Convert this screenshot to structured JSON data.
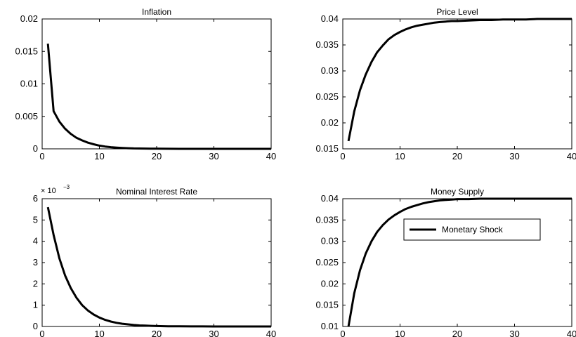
{
  "chart_data": [
    {
      "type": "line",
      "title": "Inflation",
      "xlim": [
        0,
        40
      ],
      "ylim": [
        0,
        0.02
      ],
      "xticks": [
        "0",
        "10",
        "20",
        "30",
        "40"
      ],
      "yticks": [
        "0",
        "0.005",
        "0.01",
        "0.015",
        "0.02"
      ],
      "series": [
        {
          "x": [
            1,
            2,
            3,
            4,
            5,
            6,
            7,
            8,
            9,
            10,
            11,
            12,
            13,
            14,
            15,
            16,
            17,
            18,
            19,
            20,
            22,
            24,
            26,
            28,
            30,
            32,
            34,
            36,
            38,
            40
          ],
          "y": [
            0.0162,
            0.0058,
            0.0042,
            0.0031,
            0.0023,
            0.0017,
            0.0013,
            0.00095,
            0.0007,
            0.0005,
            0.00036,
            0.00026,
            0.00019,
            0.00014,
            0.0001,
            7e-05,
            5e-05,
            4e-05,
            3e-05,
            2e-05,
            1e-05,
            5e-06,
            3e-06,
            2e-06,
            1e-06,
            0,
            0,
            0,
            0,
            0
          ]
        }
      ]
    },
    {
      "type": "line",
      "title": "Price Level",
      "xlim": [
        0,
        40
      ],
      "ylim": [
        0.015,
        0.04
      ],
      "xticks": [
        "0",
        "10",
        "20",
        "30",
        "40"
      ],
      "yticks": [
        "0.015",
        "0.02",
        "0.025",
        "0.03",
        "0.035",
        "0.04"
      ],
      "series": [
        {
          "x": [
            1,
            2,
            3,
            4,
            5,
            6,
            7,
            8,
            9,
            10,
            11,
            12,
            13,
            14,
            15,
            16,
            17,
            18,
            19,
            20,
            22,
            24,
            26,
            28,
            30,
            32,
            34,
            36,
            38,
            40
          ],
          "y": [
            0.0165,
            0.0222,
            0.0263,
            0.0293,
            0.0317,
            0.0336,
            0.0349,
            0.0361,
            0.0369,
            0.0375,
            0.038,
            0.0384,
            0.0387,
            0.0389,
            0.0391,
            0.0393,
            0.0394,
            0.0395,
            0.0396,
            0.0396,
            0.0397,
            0.0398,
            0.0398,
            0.0399,
            0.0399,
            0.0399,
            0.04,
            0.04,
            0.04,
            0.04
          ]
        }
      ]
    },
    {
      "type": "line",
      "title": "Nominal Interest Rate",
      "multiplier": "× 10",
      "exponent": "−3",
      "xlim": [
        0,
        40
      ],
      "ylim": [
        0,
        6
      ],
      "xticks": [
        "0",
        "10",
        "20",
        "30",
        "40"
      ],
      "yticks": [
        "0",
        "1",
        "2",
        "3",
        "4",
        "5",
        "6"
      ],
      "series": [
        {
          "x": [
            1,
            2,
            3,
            4,
            5,
            6,
            7,
            8,
            9,
            10,
            11,
            12,
            13,
            14,
            15,
            16,
            17,
            18,
            19,
            20,
            22,
            24,
            26,
            28,
            30,
            32,
            34,
            36,
            38,
            40
          ],
          "y": [
            5.6,
            4.3,
            3.2,
            2.4,
            1.8,
            1.35,
            1.0,
            0.75,
            0.56,
            0.42,
            0.31,
            0.23,
            0.17,
            0.13,
            0.1,
            0.07,
            0.05,
            0.04,
            0.03,
            0.02,
            0.01,
            0.005,
            0.003,
            0.002,
            0.001,
            0,
            0,
            0,
            0,
            0
          ]
        }
      ]
    },
    {
      "type": "line",
      "title": "Money Supply",
      "xlim": [
        0,
        40
      ],
      "ylim": [
        0.01,
        0.04
      ],
      "xticks": [
        "0",
        "10",
        "20",
        "30",
        "40"
      ],
      "yticks": [
        "0.01",
        "0.015",
        "0.02",
        "0.025",
        "0.03",
        "0.035",
        "0.04"
      ],
      "legend": {
        "position": "top-right-inside"
      },
      "series": [
        {
          "name": "Monetary Shock",
          "x": [
            1,
            2,
            3,
            4,
            5,
            6,
            7,
            8,
            9,
            10,
            11,
            12,
            13,
            14,
            15,
            16,
            17,
            18,
            19,
            20,
            22,
            24,
            26,
            28,
            30,
            32,
            34,
            36,
            38,
            40
          ],
          "y": [
            0.01,
            0.0178,
            0.0232,
            0.0271,
            0.03,
            0.0322,
            0.0338,
            0.0351,
            0.0361,
            0.0369,
            0.0376,
            0.0381,
            0.0385,
            0.0389,
            0.0392,
            0.0394,
            0.0396,
            0.0397,
            0.0398,
            0.0399,
            0.0399,
            0.04,
            0.04,
            0.04,
            0.04,
            0.04,
            0.04,
            0.04,
            0.04,
            0.04
          ]
        }
      ]
    }
  ]
}
